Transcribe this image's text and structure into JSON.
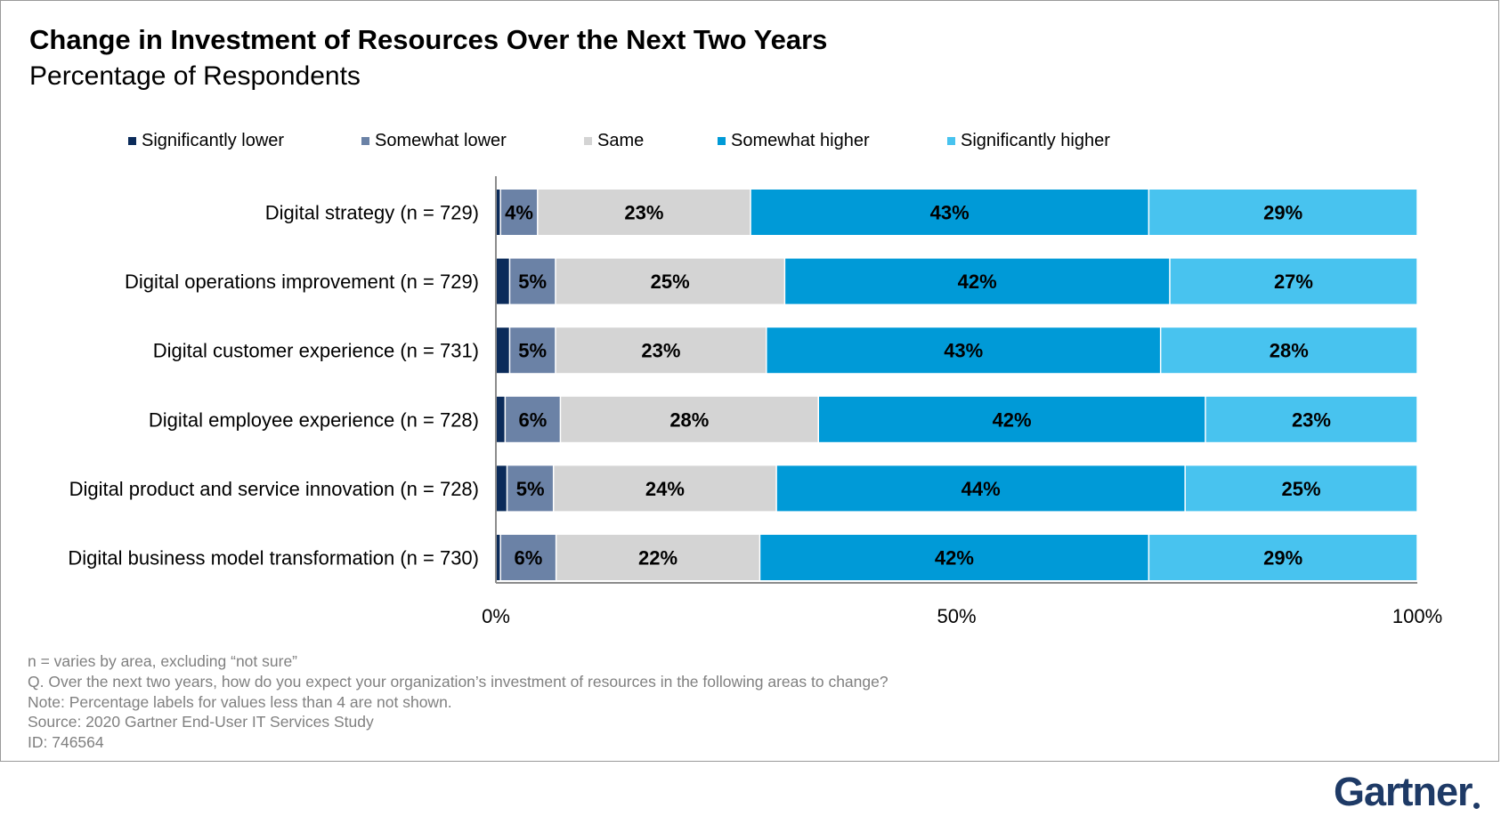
{
  "header": {
    "title": "Change in Investment of Resources Over the Next Two Years",
    "subtitle": "Percentage of Respondents"
  },
  "legend": [
    {
      "label": "Significantly lower",
      "color": "#0b2b5a"
    },
    {
      "label": "Somewhat lower",
      "color": "#6b82a6"
    },
    {
      "label": "Same",
      "color": "#d4d4d4"
    },
    {
      "label": "Somewhat higher",
      "color": "#009ad7"
    },
    {
      "label": "Significantly higher",
      "color": "#48c3ef"
    }
  ],
  "chart_data": {
    "type": "bar",
    "orientation": "horizontal",
    "stacked": true,
    "categories": [
      "Digital strategy (n = 729)",
      "Digital operations improvement (n = 729)",
      "Digital customer experience (n = 731)",
      "Digital employee experience (n = 728)",
      "Digital product and service innovation (n = 728)",
      "Digital business model transformation (n = 730)"
    ],
    "series": [
      {
        "name": "Significantly lower",
        "color": "#0b2b5a",
        "values": [
          0.5,
          1.5,
          1.5,
          1,
          1.2,
          0.5
        ]
      },
      {
        "name": "Somewhat lower",
        "color": "#6b82a6",
        "values": [
          4,
          5,
          5,
          6,
          5,
          6
        ]
      },
      {
        "name": "Same",
        "color": "#d4d4d4",
        "values": [
          23,
          25,
          23,
          28,
          24,
          22
        ]
      },
      {
        "name": "Somewhat higher",
        "color": "#009ad7",
        "values": [
          43,
          42,
          43,
          42,
          44,
          42
        ]
      },
      {
        "name": "Significantly higher",
        "color": "#48c3ef",
        "values": [
          29,
          27,
          28,
          23,
          25,
          29
        ]
      }
    ],
    "label_min": 4,
    "xlim": [
      0,
      100
    ],
    "xticks": [
      "0%",
      "50%",
      "100%"
    ],
    "grid": false
  },
  "footnotes": [
    "n = varies by area, excluding “not sure”",
    "Q. Over the next two years, how do you expect your organization’s investment of resources in the following areas to change?",
    "Note: Percentage labels for values less than 4 are not shown.",
    "Source: 2020 Gartner End-User IT Services Study",
    "ID: 746564"
  ],
  "logo": {
    "text": "Gartner"
  }
}
